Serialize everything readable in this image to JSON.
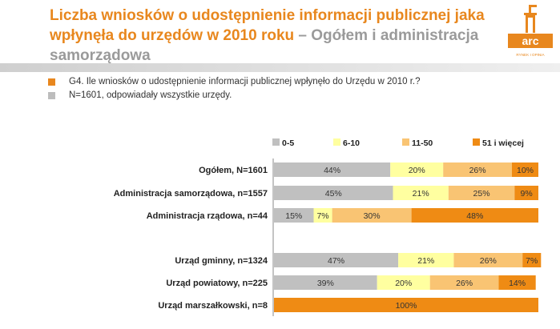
{
  "header": {
    "title_main": "Liczba wniosków o udostępnienie informacji publicznej jaka wpłynęła do urzędów w 2010 roku",
    "title_sub": " – Ogółem i administracja samorządowa"
  },
  "logo": {
    "icon": "arc-rynek-i-opinia-logo",
    "text": "arc",
    "tagline": "RYNEK I OPINIA"
  },
  "notes": [
    {
      "text": "G4. Ile wniosków o udostępnienie informacji publicznej wpłynęło do Urzędu w 2010 r.?",
      "color": "#e8871e"
    },
    {
      "text": "N=1601, odpowiadały wszystkie urzędy.",
      "color": "#bdbdbd"
    }
  ],
  "chart_data": {
    "type": "bar",
    "orientation": "horizontal",
    "stacked": true,
    "percent": true,
    "categories": [
      "Ogółem, N=1601",
      "Administracja samorządowa, n=1557",
      "Administracja rządowa, n=44",
      "",
      "Urząd gminny, n=1324",
      "Urząd powiatowy, n=225",
      "Urząd marszałkowski, n=8"
    ],
    "series": [
      {
        "name": "0-5",
        "color": "#c0c0c0",
        "values": [
          44,
          45,
          15,
          null,
          47,
          39,
          0
        ]
      },
      {
        "name": "6-10",
        "color": "#ffffa0",
        "values": [
          20,
          21,
          7,
          null,
          21,
          20,
          0
        ]
      },
      {
        "name": "11-50",
        "color": "#f9c473",
        "values": [
          26,
          25,
          30,
          null,
          26,
          26,
          0
        ]
      },
      {
        "name": "51 i więcej",
        "color": "#ef8b14",
        "values": [
          10,
          9,
          48,
          null,
          7,
          14,
          100
        ]
      }
    ],
    "legend_position": "top",
    "xlim": [
      0,
      100
    ]
  }
}
